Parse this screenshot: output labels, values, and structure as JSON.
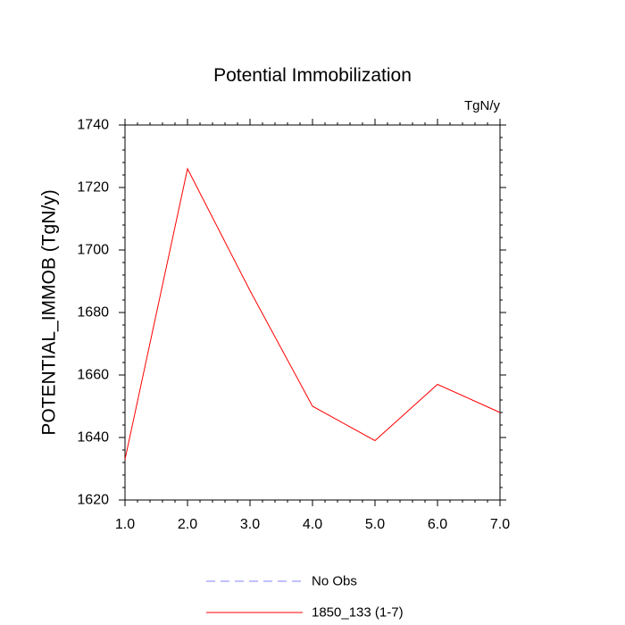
{
  "chart_data": {
    "type": "line",
    "title": "Potential Immobilization",
    "units": "TgN/y",
    "ylabel": "POTENTIAL_IMMOB  (TgN/y)",
    "xlabel": "",
    "xlim": [
      1.0,
      7.0
    ],
    "ylim": [
      1620,
      1740
    ],
    "x_ticks": [
      1.0,
      2.0,
      3.0,
      4.0,
      5.0,
      6.0,
      7.0
    ],
    "x_tick_labels": [
      "1.0",
      "2.0",
      "3.0",
      "4.0",
      "5.0",
      "6.0",
      "7.0"
    ],
    "y_ticks": [
      1620,
      1640,
      1660,
      1680,
      1700,
      1720,
      1740
    ],
    "y_tick_labels": [
      "1620",
      "1640",
      "1660",
      "1680",
      "1700",
      "1720",
      "1740"
    ],
    "grid": false,
    "legend_position": "bottom",
    "series": [
      {
        "name": "1850_133 (1-7)",
        "color": "#ff0000",
        "style": "solid",
        "x": [
          1.0,
          2.0,
          3.0,
          4.0,
          5.0,
          6.0,
          7.0
        ],
        "y": [
          1633,
          1726,
          1687,
          1650,
          1639,
          1657,
          1648
        ]
      }
    ],
    "legend": [
      {
        "label": "No Obs",
        "color": "#8080ff",
        "style": "dashed"
      },
      {
        "label": "1850_133 (1-7)",
        "color": "#ff0000",
        "style": "solid"
      }
    ]
  }
}
